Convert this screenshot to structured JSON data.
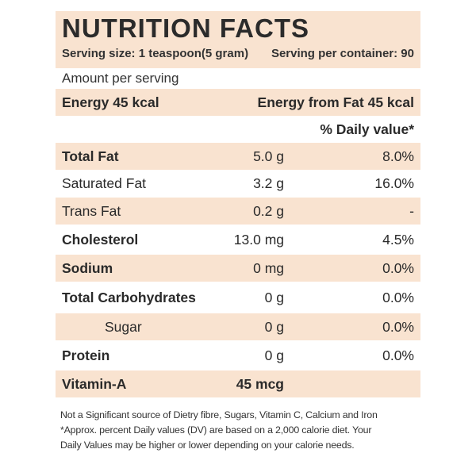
{
  "header": {
    "title": "NUTRITION FACTS",
    "serving_size": "Serving size: 1 teaspoon(5 gram)",
    "servings_per_container": "Serving per container: 90"
  },
  "amount_per_serving": "Amount per serving",
  "energy": {
    "label": "Energy 45 kcal",
    "from_fat": "Energy from Fat 45 kcal"
  },
  "dv_header": "% Daily value*",
  "nutrients": [
    {
      "name": "Total Fat",
      "amount": "5.0 g",
      "dv": "8.0%"
    },
    {
      "name": "Saturated Fat",
      "amount": "3.2 g",
      "dv": "16.0%"
    },
    {
      "name": "Trans Fat",
      "amount": "0.2 g",
      "dv": "-"
    },
    {
      "name": "Cholesterol",
      "amount": "13.0 mg",
      "dv": "4.5%"
    },
    {
      "name": "Sodium",
      "amount": "0 mg",
      "dv": "0.0%"
    },
    {
      "name": "Total Carbohydrates",
      "amount": "0 g",
      "dv": "0.0%"
    },
    {
      "name": "Sugar",
      "amount": "0 g",
      "dv": "0.0%"
    },
    {
      "name": "Protein",
      "amount": "0 g",
      "dv": "0.0%"
    }
  ],
  "vitamin_a": {
    "name": "Vitamin-A",
    "amount": "45 mcg"
  },
  "footnotes": [
    "Not a Significant source of Dietry fibre, Sugars, Vitamin C, Calcium and Iron",
    "*Approx. percent Daily values (DV) are based on a 2,000 calorie diet. Your",
    "Daily Values may be higher or lower depending on your calorie needs."
  ],
  "colors": {
    "shade": "#f9e3d0",
    "text": "#2a2a2a"
  }
}
